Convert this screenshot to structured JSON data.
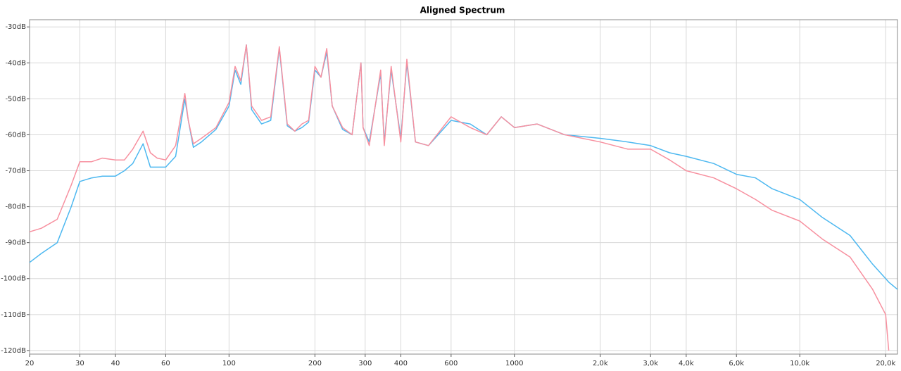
{
  "chart_data": {
    "type": "line",
    "title": "Aligned Spectrum",
    "x": [
      20,
      22,
      25,
      28,
      30,
      33,
      36,
      40,
      43,
      46,
      50,
      53,
      56,
      60,
      65,
      70,
      72,
      75,
      80,
      90,
      100,
      105,
      110,
      115,
      120,
      130,
      140,
      150,
      160,
      170,
      180,
      190,
      200,
      210,
      220,
      230,
      250,
      270,
      290,
      295,
      310,
      340,
      350,
      370,
      400,
      420,
      450,
      500,
      600,
      700,
      800,
      900,
      1000,
      1200,
      1500,
      2000,
      2500,
      3000,
      3500,
      4000,
      5000,
      6000,
      7000,
      8000,
      10000,
      12000,
      15000,
      18000,
      20000,
      20500,
      22000
    ],
    "series": [
      {
        "color": "#4db8f0",
        "values": [
          -95.5,
          -93,
          -90,
          -80,
          -73,
          -72,
          -71.5,
          -71.5,
          -70,
          -68,
          -62.5,
          -69,
          -69,
          -69,
          -66,
          -50,
          -56,
          -63.5,
          -62,
          -58.5,
          -52,
          -42,
          -46,
          -35,
          -53,
          -57,
          -56,
          -36,
          -57.5,
          -59,
          -58,
          -56.5,
          -42,
          -44,
          -37,
          -52,
          -58.5,
          -60,
          -40,
          -58,
          -62,
          -43,
          -62,
          -42,
          -61,
          -40,
          -62,
          -63,
          -56,
          -57,
          -60,
          -55,
          -58,
          -57,
          -60,
          -61,
          -62,
          -63,
          -65,
          -66,
          -68,
          -71,
          -72,
          -75,
          -78,
          -83,
          -88,
          -96,
          -100,
          -101,
          -103
        ]
      },
      {
        "color": "#f7909f",
        "values": [
          -87,
          -86,
          -83.5,
          -74,
          -67.5,
          -67.5,
          -66.5,
          -67,
          -67,
          -64,
          -59,
          -65,
          -66.5,
          -67,
          -63,
          -48.5,
          -56,
          -62.5,
          -61,
          -58,
          -51,
          -41,
          -45,
          -35,
          -52,
          -56,
          -55,
          -35.5,
          -57,
          -59,
          -57,
          -56,
          -41,
          -44,
          -36,
          -52,
          -58,
          -60,
          -40,
          -58,
          -63,
          -42,
          -63,
          -41,
          -62,
          -39,
          -62,
          -63,
          -55,
          -58,
          -60,
          -55,
          -58,
          -57,
          -60,
          -62,
          -64,
          -64,
          -67,
          -70,
          -72,
          -75,
          -78,
          -81,
          -84,
          -89,
          -94,
          -103,
          -110,
          -120,
          null
        ]
      }
    ],
    "xlog": true,
    "xlim": [
      20,
      22000
    ],
    "ylim": [
      -121,
      -28
    ],
    "xticks": [
      20,
      30,
      40,
      60,
      100,
      200,
      300,
      400,
      600,
      1000,
      {
        "value": 2000,
        "label": "2,0k"
      },
      {
        "value": 3000,
        "label": "3,0k"
      },
      {
        "value": 4000,
        "label": "4,0k"
      },
      {
        "value": 6000,
        "label": "6,0k"
      },
      {
        "value": 10000,
        "label": "10,0k"
      },
      {
        "value": 20000,
        "label": "20,0k"
      }
    ],
    "yticks": [
      {
        "value": -30,
        "label": "-30dB"
      },
      {
        "value": -40,
        "label": "-40dB"
      },
      {
        "value": -50,
        "label": "-50dB"
      },
      {
        "value": -60,
        "label": "-60dB"
      },
      {
        "value": -70,
        "label": "-70dB"
      },
      {
        "value": -80,
        "label": "-80dB"
      },
      {
        "value": -90,
        "label": "-90dB"
      },
      {
        "value": -100,
        "label": "-100dB"
      },
      {
        "value": -110,
        "label": "-110dB"
      },
      {
        "value": -120,
        "label": "-120dB"
      }
    ],
    "grid": true
  }
}
